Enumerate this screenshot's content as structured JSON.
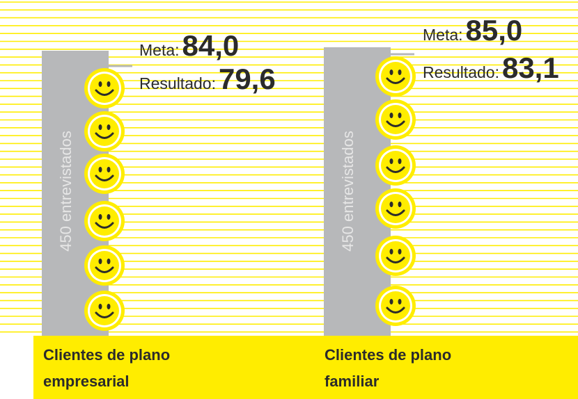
{
  "groups": [
    {
      "meta_label": "Meta:",
      "meta_value": "84,0",
      "result_label": "Resultado:",
      "result_value": "79,6",
      "sample": "450 entrevistados",
      "name_line1": "Clientes de plano",
      "name_line2": "empresarial"
    },
    {
      "meta_label": "Meta:",
      "meta_value": "85,0",
      "result_label": "Resultado:",
      "result_value": "83,1",
      "sample": "450 entrevistados",
      "name_line1": "Clientes de plano",
      "name_line2": "familiar"
    }
  ]
}
